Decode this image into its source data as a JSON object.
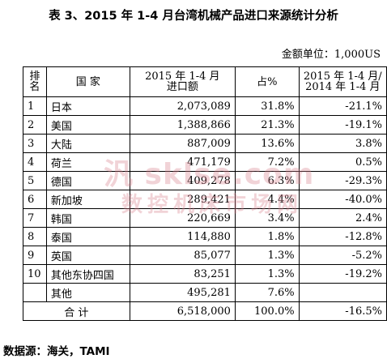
{
  "title": "表 3、2015 年 1-4 月台湾机械产品进口来源统计分析",
  "unit": "金额单位：1,000US",
  "table": {
    "headers": {
      "rank_line1": "排",
      "rank_line2": "名",
      "country": "国    家",
      "value_line1": "2015 年 1-4 月",
      "value_line2": "进口额",
      "share": "占%",
      "growth_line1": "2015 年 1-4 月/",
      "growth_line2": "2014 年 1-4 月"
    },
    "rows": [
      {
        "rank": "1",
        "country": "日本",
        "value": "2,073,089",
        "share": "31.8%",
        "growth": "-21.1%"
      },
      {
        "rank": "2",
        "country": "美国",
        "value": "1,388,866",
        "share": "21.3%",
        "growth": "-19.1%"
      },
      {
        "rank": "3",
        "country": "大陆",
        "value": "887,009",
        "share": "13.6%",
        "growth": "3.8%"
      },
      {
        "rank": "4",
        "country": "荷兰",
        "value": "471,179",
        "share": "7.2%",
        "growth": "0.5%"
      },
      {
        "rank": "5",
        "country": "德国",
        "value": "409,278",
        "share": "6.3%",
        "growth": "-29.3%"
      },
      {
        "rank": "6",
        "country": "新加坡",
        "value": "289,421",
        "share": "4.4%",
        "growth": "-40.0%"
      },
      {
        "rank": "7",
        "country": "韩国",
        "value": "220,669",
        "share": "3.4%",
        "growth": "2.4%"
      },
      {
        "rank": "8",
        "country": "泰国",
        "value": "114,880",
        "share": "1.8%",
        "growth": "-12.8%"
      },
      {
        "rank": "9",
        "country": "英国",
        "value": "85,077",
        "share": "1.3%",
        "growth": "-5.2%"
      },
      {
        "rank": "10",
        "country": "其他东协四国",
        "value": "83,251",
        "share": "1.3%",
        "growth": "-19.2%"
      },
      {
        "rank": "",
        "country": "其他",
        "value": "495,281",
        "share": "7.6%",
        "growth": ""
      }
    ],
    "total": {
      "label": "合    计",
      "value": "6,518,000",
      "share": "100.0%",
      "growth": "-16.5%"
    }
  },
  "source": "数据源：海关，TAMI",
  "watermark": {
    "line1": "汎 sklse.com",
    "line2": "数控机床市场网"
  }
}
